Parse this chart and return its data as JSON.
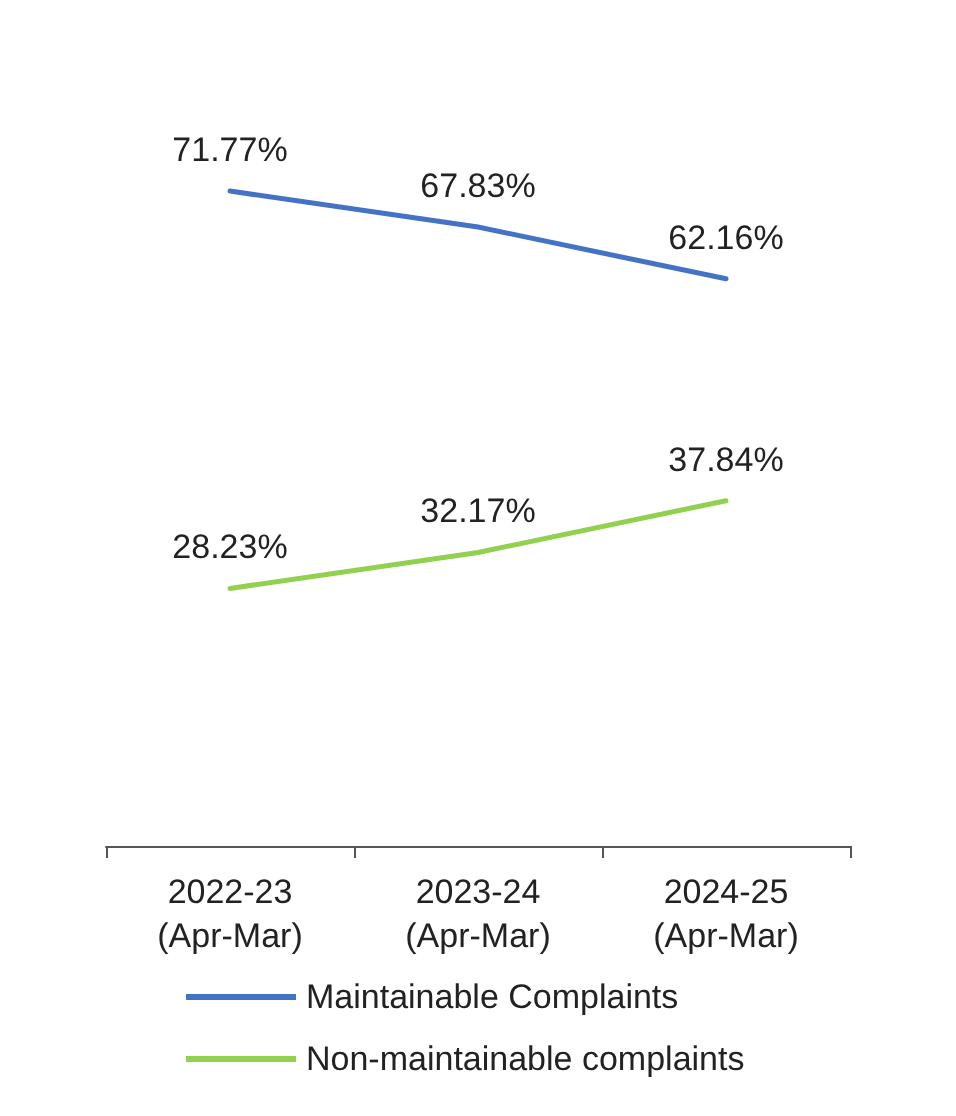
{
  "chart_data": {
    "type": "line",
    "categories": [
      "2022-23\n(Apr-Mar)",
      "2023-24\n(Apr-Mar)",
      "2024-25\n(Apr-Mar)"
    ],
    "series": [
      {
        "name": "Maintainable Complaints",
        "color": "#4472c4",
        "values": [
          71.77,
          67.83,
          62.16
        ],
        "value_labels": [
          "71.77%",
          "67.83%",
          "62.16%"
        ]
      },
      {
        "name": "Non-maintainable complaints",
        "color": "#92d050",
        "values": [
          28.23,
          32.17,
          37.84
        ],
        "value_labels": [
          "28.23%",
          "32.17%",
          "37.84%"
        ]
      }
    ],
    "grid": false,
    "legend": "bottom",
    "marker": "none",
    "line_style": "solid",
    "tick_labels": "x"
  }
}
